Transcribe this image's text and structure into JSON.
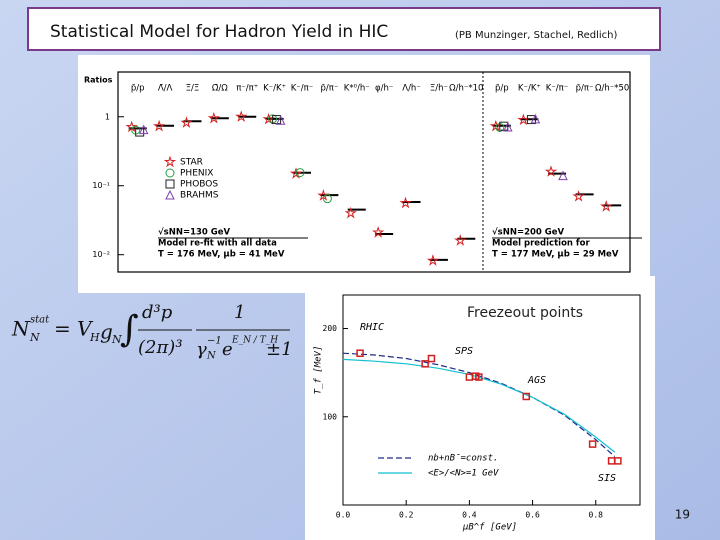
{
  "slide": {
    "title": "Statistical Model for Hadron Yield in HIC",
    "subtitle": "(PB Munzinger, Stachel, Redlich)",
    "page_number": "19",
    "equation": {
      "lhs": "N",
      "lhs_sup": "stat",
      "lhs_sub": "N",
      "rhs": "= V",
      "rhs_sub": "H",
      "g": "g",
      "g_sub": "N",
      "integral": "∫",
      "num1": "d³p",
      "den1": "(2π)³",
      "num2": "1",
      "gamma": "γ",
      "gamma_sub": "N",
      "gamma_sup": "−1",
      "exp": "e",
      "exp_arg": "E_N / T_H",
      "pm": "±1"
    }
  },
  "chart_data": [
    {
      "type": "ratios",
      "y_label": "Ratios",
      "log_scale": true,
      "ylim": [
        0.006,
        2
      ],
      "yticks": [
        1,
        {
          "value": 0.1,
          "label": "10⁻¹"
        },
        {
          "value": 0.01,
          "label": "10⁻²"
        }
      ],
      "categories": [
        "p̄/p",
        "Λ̄/Λ",
        "Ξ̄/Ξ",
        "Ω̄/Ω",
        "π⁻/π⁺",
        "K⁻/K⁺",
        "K⁻/π⁻",
        "p̄/π⁻",
        "K*⁰/h⁻",
        "φ/h⁻",
        "Λ/h⁻",
        "Ξ/h⁻",
        "Ω/h⁻*10"
      ],
      "model": [
        0.68,
        0.74,
        0.86,
        0.95,
        1.0,
        0.93,
        0.154,
        0.073,
        0.045,
        0.02,
        0.058,
        0.0084,
        0.017
      ],
      "series": [
        {
          "name": "STAR",
          "color": "#d62020",
          "marker": "star",
          "values": [
            0.71,
            0.73,
            0.82,
            0.95,
            1.0,
            0.92,
            0.15,
            0.072,
            0.04,
            0.021,
            0.056,
            0.0082,
            0.016
          ]
        },
        {
          "name": "PHENIX",
          "color": "#20a040",
          "marker": "circle",
          "values": [
            0.64,
            null,
            null,
            null,
            null,
            0.93,
            0.155,
            0.065,
            null,
            null,
            null,
            null,
            null
          ]
        },
        {
          "name": "PHOBOS",
          "color": "#202020",
          "marker": "square",
          "values": [
            0.6,
            null,
            null,
            null,
            null,
            0.91,
            null,
            null,
            null,
            null,
            null,
            null,
            null
          ]
        },
        {
          "name": "BRAHMS",
          "color": "#8040b0",
          "marker": "triangle",
          "values": [
            0.65,
            null,
            null,
            null,
            null,
            0.89,
            null,
            null,
            null,
            null,
            null,
            null,
            null
          ]
        }
      ],
      "legend": true,
      "notes": [
        "√sNN=130 GeV",
        "Model re-fit with all data",
        "T = 176 MeV,   μb = 41 MeV"
      ]
    },
    {
      "type": "ratios",
      "log_scale": true,
      "ylim": [
        0.006,
        2
      ],
      "categories": [
        "p̄/p",
        "K⁻/K⁺",
        "K⁻/π⁻",
        "p̄/π⁻",
        "Ω/h⁻*50"
      ],
      "model": [
        0.74,
        0.92,
        0.15,
        0.075,
        0.052
      ],
      "series": [
        {
          "name": "STAR",
          "color": "#d62020",
          "marker": "star",
          "values": [
            0.73,
            0.9,
            0.16,
            0.07,
            0.05
          ]
        },
        {
          "name": "PHENIX",
          "color": "#20a040",
          "marker": "circle",
          "values": [
            0.7,
            null,
            null,
            null,
            null
          ]
        },
        {
          "name": "PHOBOS",
          "color": "#202020",
          "marker": "square",
          "values": [
            0.73,
            0.91,
            null,
            null,
            null
          ]
        },
        {
          "name": "BRAHMS",
          "color": "#8040b0",
          "marker": "triangle",
          "values": [
            0.71,
            0.93,
            0.14,
            null,
            null
          ]
        }
      ],
      "legend": false,
      "notes": [
        "√sNN=200 GeV",
        "Model prediction for",
        "T = 177 MeV,   μb = 29 MeV"
      ]
    },
    {
      "type": "freezeout",
      "title": "Freezeout points",
      "x_label": "μB^f  [GeV]",
      "y_label": "T_f  [MeV]",
      "xlim": [
        0,
        0.94
      ],
      "ylim": [
        0,
        238
      ],
      "xticks": [
        {
          "value": 0,
          "label": "0.0"
        },
        {
          "value": 0.2,
          "label": "0.2"
        },
        {
          "value": 0.4,
          "label": "0.4"
        },
        {
          "value": 0.6,
          "label": "0.6"
        },
        {
          "value": 0.8,
          "label": "0.8"
        }
      ],
      "yticks": [
        100,
        200
      ],
      "points": {
        "color": "#d02020",
        "x": [
          0.054,
          0.26,
          0.28,
          0.4,
          0.42,
          0.43,
          0.58,
          0.79,
          0.85,
          0.87
        ],
        "y": [
          172,
          160,
          166,
          145,
          146,
          145,
          123,
          69,
          50,
          50
        ]
      },
      "series": [
        {
          "name": "nb+nB̄=const.",
          "color": "#1a2a8a",
          "dash": true,
          "x": [
            0,
            0.1,
            0.2,
            0.3,
            0.4,
            0.5,
            0.6,
            0.7,
            0.8,
            0.86
          ],
          "values": [
            172,
            170,
            166,
            159,
            150,
            138,
            122,
            102,
            74,
            55
          ]
        },
        {
          "name": "<E>/<N>=1 GeV",
          "color": "#10c0d0",
          "dash": false,
          "x": [
            0,
            0.1,
            0.2,
            0.3,
            0.4,
            0.5,
            0.6,
            0.7,
            0.8,
            0.86
          ],
          "values": [
            165,
            163,
            160,
            155,
            148,
            137,
            122,
            103,
            77,
            60
          ]
        }
      ],
      "annotations": [
        "RHIC",
        "SPS",
        "AGS",
        "SIS"
      ]
    }
  ]
}
